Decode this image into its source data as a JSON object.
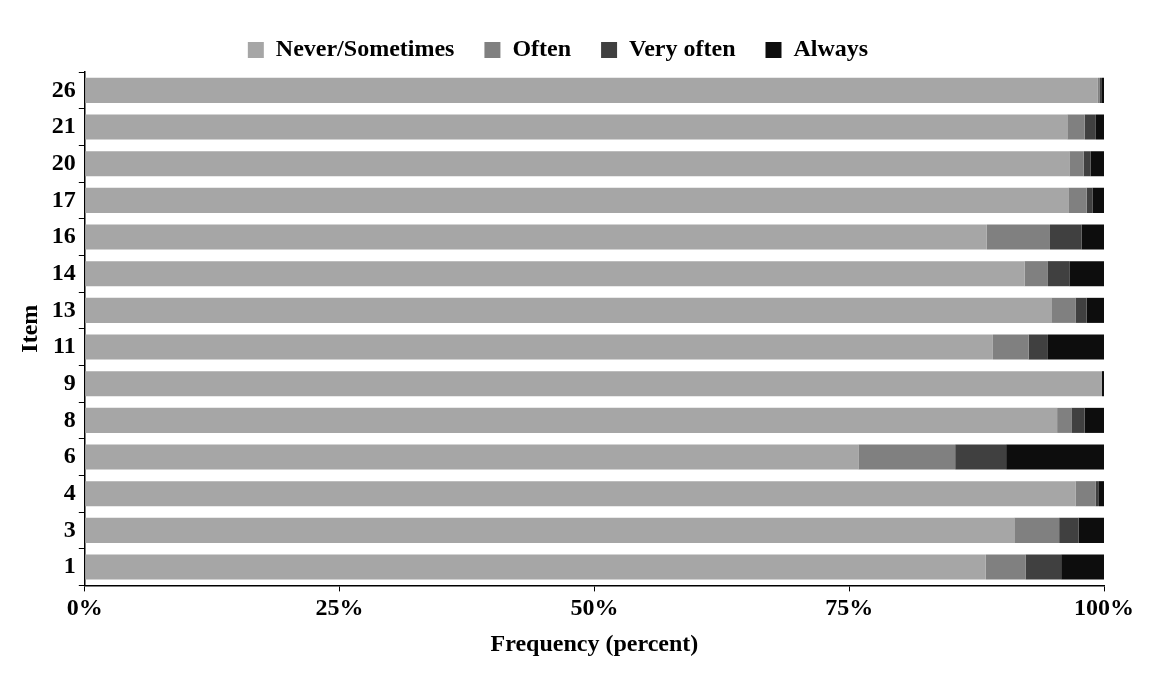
{
  "chart_data": {
    "type": "bar",
    "orientation": "horizontal",
    "stacked": true,
    "xlabel": "Frequency (percent)",
    "ylabel": "Item",
    "categories": [
      "26",
      "21",
      "20",
      "17",
      "16",
      "14",
      "13",
      "11",
      "9",
      "8",
      "6",
      "4",
      "3",
      "1"
    ],
    "series": [
      {
        "name": "Never/Sometimes",
        "color": "#a6a6a6",
        "values": [
          99.4,
          96.4,
          96.6,
          96.5,
          88.5,
          92.2,
          94.9,
          89.1,
          99.8,
          95.4,
          75.9,
          97.2,
          91.2,
          88.4
        ]
      },
      {
        "name": "Often",
        "color": "#808080",
        "values": [
          0.2,
          1.7,
          1.4,
          1.8,
          6.2,
          2.3,
          2.3,
          3.5,
          0,
          1.4,
          9.5,
          2.0,
          4.4,
          3.9
        ]
      },
      {
        "name": "Very often",
        "color": "#404040",
        "values": [
          0.2,
          1.1,
          0.7,
          0.6,
          3.1,
          2.1,
          1.1,
          1.9,
          0,
          1.3,
          5.0,
          0.3,
          1.9,
          3.5
        ]
      },
      {
        "name": "Always",
        "color": "#0d0d0d",
        "values": [
          0.2,
          0.8,
          1.3,
          1.1,
          2.2,
          3.4,
          1.7,
          5.5,
          0.2,
          1.9,
          9.6,
          0.5,
          2.5,
          4.2
        ]
      }
    ],
    "xlim": [
      0,
      100
    ],
    "xticks": [
      {
        "value": 0,
        "label": "0%"
      },
      {
        "value": 25,
        "label": "25%"
      },
      {
        "value": 50,
        "label": "50%"
      },
      {
        "value": 75,
        "label": "75%"
      },
      {
        "value": 100,
        "label": "100%"
      }
    ],
    "grid": false,
    "legend": "top"
  }
}
